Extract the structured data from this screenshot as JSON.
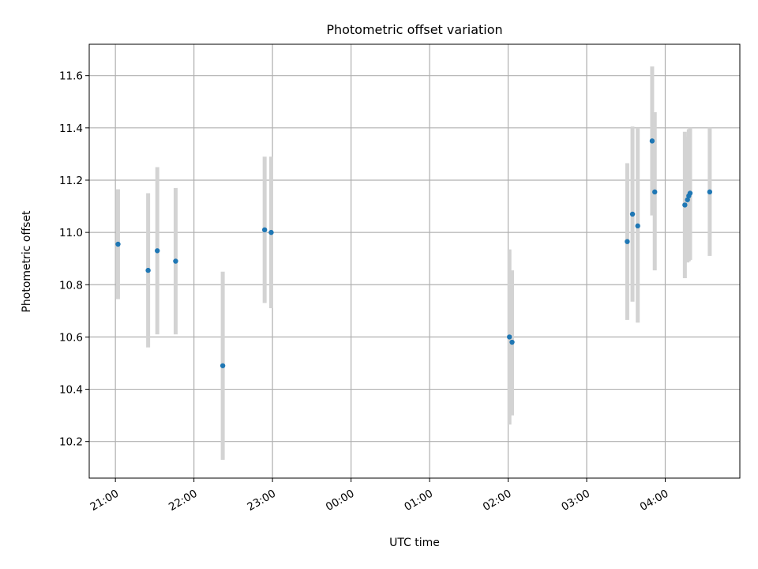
{
  "chart_data": {
    "type": "scatter",
    "title": "Photometric offset variation",
    "xlabel": "UTC time",
    "ylabel": "Photometric offset",
    "grid": true,
    "legend": "none",
    "x_axis": {
      "kind": "time",
      "start": "20:40",
      "end": "04:57",
      "ticks": [
        "21:00",
        "22:00",
        "23:00",
        "00:00",
        "01:00",
        "02:00",
        "03:00",
        "04:00"
      ]
    },
    "y_axis": {
      "ylim": [
        10.06,
        11.72
      ],
      "ticks": [
        "10.2",
        "10.4",
        "10.6",
        "10.8",
        "11.0",
        "11.2",
        "11.4",
        "11.6"
      ]
    },
    "colors": {
      "marker": "#1f77b4",
      "errorbar": "#d3d3d3",
      "grid": "#b0b0b0"
    },
    "points": [
      {
        "time": "21:02",
        "value": 10.955,
        "lo": 10.745,
        "hi": 11.165
      },
      {
        "time": "21:25",
        "value": 10.855,
        "lo": 10.56,
        "hi": 11.15
      },
      {
        "time": "21:32",
        "value": 10.93,
        "lo": 10.61,
        "hi": 11.25
      },
      {
        "time": "21:46",
        "value": 10.89,
        "lo": 10.61,
        "hi": 11.17
      },
      {
        "time": "22:22",
        "value": 10.49,
        "lo": 10.13,
        "hi": 10.85
      },
      {
        "time": "22:54",
        "value": 11.01,
        "lo": 10.73,
        "hi": 11.29
      },
      {
        "time": "22:59",
        "value": 11.0,
        "lo": 10.71,
        "hi": 11.29
      },
      {
        "time": "02:01",
        "value": 10.6,
        "lo": 10.265,
        "hi": 10.935
      },
      {
        "time": "02:03",
        "value": 10.58,
        "lo": 10.3,
        "hi": 10.855
      },
      {
        "time": "03:31",
        "value": 10.965,
        "lo": 10.665,
        "hi": 11.265
      },
      {
        "time": "03:35",
        "value": 11.07,
        "lo": 10.735,
        "hi": 11.405
      },
      {
        "time": "03:39",
        "value": 11.025,
        "lo": 10.655,
        "hi": 11.4
      },
      {
        "time": "03:50",
        "value": 11.35,
        "lo": 11.065,
        "hi": 11.635
      },
      {
        "time": "03:52",
        "value": 11.155,
        "lo": 10.855,
        "hi": 11.46
      },
      {
        "time": "04:15",
        "value": 11.105,
        "lo": 10.825,
        "hi": 11.385
      },
      {
        "time": "04:17",
        "value": 11.125,
        "lo": 10.885,
        "hi": 11.365
      },
      {
        "time": "04:18",
        "value": 11.14,
        "lo": 10.89,
        "hi": 11.395
      },
      {
        "time": "04:19",
        "value": 11.15,
        "lo": 10.895,
        "hi": 11.4
      },
      {
        "time": "04:34",
        "value": 11.155,
        "lo": 10.91,
        "hi": 11.4
      }
    ]
  }
}
